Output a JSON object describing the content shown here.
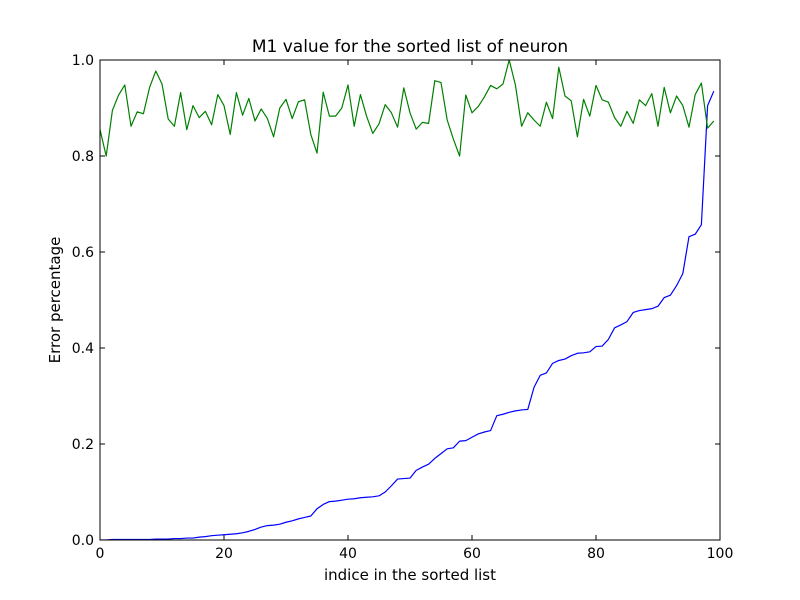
{
  "chart_data": {
    "type": "line",
    "title": "M1 value for the sorted list of neuron",
    "xlabel": "indice in the sorted list",
    "ylabel": "Error percentage",
    "xlim": [
      0,
      100
    ],
    "ylim": [
      0.0,
      1.0
    ],
    "xticks": [
      0,
      20,
      40,
      60,
      80,
      100
    ],
    "xtick_labels": [
      "0",
      "20",
      "40",
      "60",
      "80",
      "100"
    ],
    "yticks": [
      0.0,
      0.2,
      0.4,
      0.6,
      0.8,
      1.0
    ],
    "ytick_labels": [
      "0.0",
      "0.2",
      "0.4",
      "0.6",
      "0.8",
      "1.0"
    ],
    "grid": false,
    "series": [
      {
        "color": "#0000ff",
        "values": [
          0.0,
          0.0,
          0.001,
          0.001,
          0.001,
          0.001,
          0.001,
          0.001,
          0.001,
          0.002,
          0.002,
          0.002,
          0.003,
          0.003,
          0.004,
          0.004,
          0.006,
          0.007,
          0.009,
          0.01,
          0.011,
          0.012,
          0.013,
          0.015,
          0.018,
          0.022,
          0.027,
          0.03,
          0.031,
          0.033,
          0.037,
          0.04,
          0.044,
          0.047,
          0.05,
          0.065,
          0.074,
          0.08,
          0.081,
          0.083,
          0.085,
          0.086,
          0.088,
          0.089,
          0.09,
          0.092,
          0.1,
          0.113,
          0.127,
          0.128,
          0.129,
          0.145,
          0.152,
          0.158,
          0.17,
          0.18,
          0.19,
          0.192,
          0.206,
          0.207,
          0.214,
          0.221,
          0.225,
          0.228,
          0.259,
          0.262,
          0.266,
          0.269,
          0.271,
          0.272,
          0.318,
          0.343,
          0.348,
          0.368,
          0.374,
          0.377,
          0.384,
          0.389,
          0.39,
          0.392,
          0.403,
          0.404,
          0.418,
          0.442,
          0.448,
          0.455,
          0.474,
          0.478,
          0.48,
          0.482,
          0.487,
          0.505,
          0.51,
          0.53,
          0.555,
          0.632,
          0.637,
          0.657,
          0.905,
          0.935
        ]
      },
      {
        "color": "#008000",
        "values": [
          0.855,
          0.8,
          0.895,
          0.927,
          0.948,
          0.862,
          0.892,
          0.888,
          0.943,
          0.977,
          0.95,
          0.877,
          0.862,
          0.932,
          0.855,
          0.905,
          0.88,
          0.893,
          0.865,
          0.928,
          0.905,
          0.845,
          0.932,
          0.885,
          0.92,
          0.873,
          0.898,
          0.878,
          0.84,
          0.9,
          0.918,
          0.878,
          0.913,
          0.917,
          0.845,
          0.806,
          0.933,
          0.883,
          0.883,
          0.9,
          0.948,
          0.862,
          0.928,
          0.883,
          0.847,
          0.867,
          0.907,
          0.89,
          0.86,
          0.942,
          0.89,
          0.856,
          0.87,
          0.868,
          0.957,
          0.953,
          0.875,
          0.835,
          0.8,
          0.927,
          0.89,
          0.903,
          0.923,
          0.947,
          0.94,
          0.95,
          1.0,
          0.948,
          0.862,
          0.89,
          0.875,
          0.862,
          0.912,
          0.878,
          0.985,
          0.925,
          0.915,
          0.84,
          0.918,
          0.883,
          0.947,
          0.917,
          0.912,
          0.88,
          0.862,
          0.893,
          0.868,
          0.917,
          0.905,
          0.93,
          0.862,
          0.943,
          0.89,
          0.925,
          0.905,
          0.86,
          0.928,
          0.952,
          0.858,
          0.873
        ]
      }
    ]
  }
}
